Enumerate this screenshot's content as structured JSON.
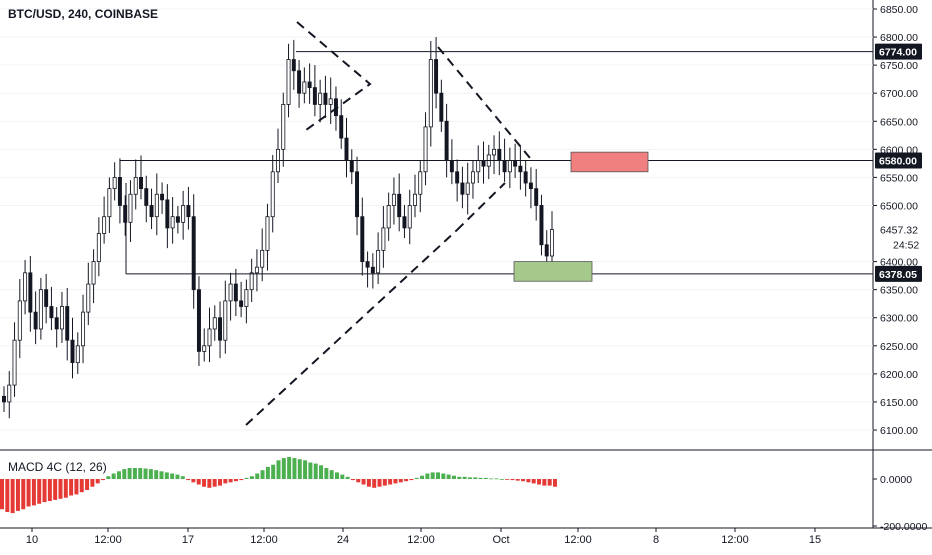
{
  "header": {
    "symbol_title": "BTC/USD, 240, COINBASE"
  },
  "indicator": {
    "title": "MACD 4C (12, 26)"
  },
  "price_axis": {
    "ticks": [
      "6850.00",
      "6800.00",
      "6750.00",
      "6700.00",
      "6650.00",
      "6600.00",
      "6550.00",
      "6500.00",
      "6400.00",
      "6350.00",
      "6300.00",
      "6250.00",
      "6200.00",
      "6150.00",
      "6100.00"
    ],
    "tick_values": [
      6850,
      6800,
      6750,
      6700,
      6650,
      6600,
      6550,
      6500,
      6400,
      6350,
      6300,
      6250,
      6200,
      6150,
      6100
    ],
    "current_price_label": "6457.32",
    "countdown_label": "24:52",
    "level_labels": [
      "6774.00",
      "6580.00",
      "6378.05"
    ],
    "level_values": [
      6774,
      6580,
      6378.05
    ]
  },
  "macd_axis": {
    "ticks": [
      "0.0000",
      "-200.0000"
    ]
  },
  "time_axis": {
    "ticks": [
      "10",
      "12:00",
      "17",
      "12:00",
      "24",
      "12:00",
      "Oct",
      "12:00",
      "8",
      "12:00",
      "15"
    ]
  },
  "colors": {
    "bull_candle": "#131722",
    "bear_candle": "#131722",
    "macd_positive": "#4caf50",
    "macd_negative": "#e53935",
    "sell_zone": "#f08080",
    "buy_zone": "#a5c98a",
    "level_line": "#131722",
    "axis_label_bg": "#131722"
  },
  "chart_data": {
    "type": "candlestick",
    "title": "BTC/USD, 240, COINBASE",
    "ylim": [
      6080,
      6870
    ],
    "horizontal_levels": [
      6774,
      6580,
      6378.05
    ],
    "zones": [
      {
        "name": "sell",
        "from": 6560,
        "to": 6595
      },
      {
        "name": "buy",
        "from": 6365,
        "to": 6400
      }
    ],
    "closes": [
      6150,
      6180,
      6260,
      6330,
      6380,
      6310,
      6280,
      6350,
      6320,
      6300,
      6280,
      6320,
      6260,
      6220,
      6250,
      6310,
      6360,
      6400,
      6450,
      6480,
      6530,
      6550,
      6500,
      6470,
      6520,
      6550,
      6530,
      6500,
      6480,
      6520,
      6510,
      6460,
      6480,
      6470,
      6500,
      6480,
      6350,
      6240,
      6250,
      6280,
      6300,
      6260,
      6330,
      6360,
      6330,
      6320,
      6350,
      6380,
      6390,
      6420,
      6480,
      6560,
      6600,
      6680,
      6760,
      6740,
      6700,
      6720,
      6710,
      6680,
      6700,
      6680,
      6690,
      6660,
      6620,
      6580,
      6560,
      6480,
      6400,
      6390,
      6380,
      6420,
      6460,
      6500,
      6520,
      6480,
      6460,
      6500,
      6520,
      6560,
      6640,
      6760,
      6700,
      6650,
      6580,
      6560,
      6540,
      6520,
      6540,
      6560,
      6580,
      6570,
      6590,
      6600,
      6580,
      6560,
      6580,
      6570,
      6560,
      6540,
      6530,
      6500,
      6430,
      6410,
      6457
    ],
    "macd_histogram": [
      -55,
      -60,
      -62,
      -58,
      -55,
      -50,
      -48,
      -45,
      -42,
      -40,
      -38,
      -36,
      -34,
      -30,
      -28,
      -24,
      -20,
      -14,
      -8,
      -2,
      5,
      10,
      14,
      18,
      20,
      20,
      20,
      19,
      18,
      16,
      14,
      12,
      10,
      8,
      5,
      -2,
      -6,
      -10,
      -14,
      -16,
      -14,
      -12,
      -8,
      -6,
      -4,
      -2,
      2,
      5,
      10,
      16,
      22,
      26,
      34,
      38,
      40,
      38,
      36,
      34,
      30,
      28,
      25,
      20,
      16,
      12,
      8,
      4,
      -2,
      -6,
      -10,
      -14,
      -16,
      -14,
      -12,
      -10,
      -8,
      -6,
      -4,
      -2,
      2,
      6,
      10,
      12,
      12,
      10,
      8,
      6,
      4,
      4,
      3,
      3,
      2,
      2,
      1,
      1,
      0,
      -1,
      -2,
      -3,
      -4,
      -6,
      -8,
      -10,
      -12,
      -12,
      -14
    ]
  }
}
